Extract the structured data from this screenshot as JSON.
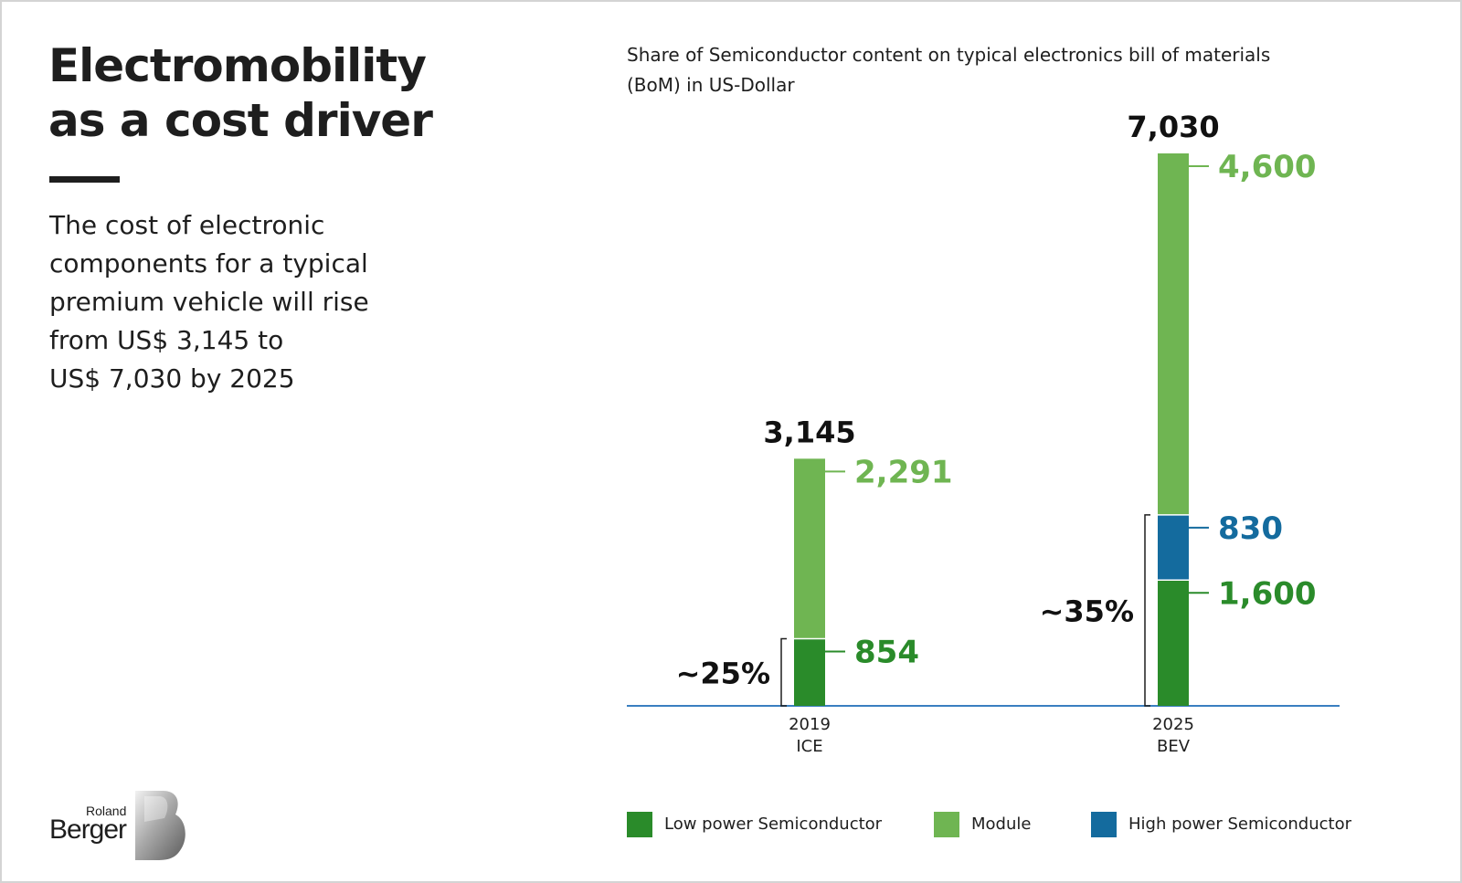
{
  "header": {
    "title_lines": [
      "Electromobility",
      "as a cost driver"
    ],
    "subtitle_lines": [
      "The cost of electronic",
      "components for a typical",
      "premium vehicle will rise",
      "from US$ 3,145 to",
      "US$ 7,030 by 2025"
    ]
  },
  "chart_note_lines": [
    "Share of Semiconductor content on typical electronics bill of materials",
    "(BoM) in US-Dollar"
  ],
  "chart_data": {
    "type": "bar",
    "stacked": true,
    "categories": [
      {
        "year": "2019",
        "label": "ICE"
      },
      {
        "year": "2025",
        "label": "BEV"
      }
    ],
    "series": [
      {
        "name": "Low power Semiconductor",
        "color": "#2a8b2a",
        "values": [
          854,
          1600
        ],
        "labels": [
          "854",
          "1,600"
        ]
      },
      {
        "name": "High power Semiconductor",
        "color": "#146b9e",
        "values": [
          0,
          830
        ],
        "labels": [
          "",
          "830"
        ]
      },
      {
        "name": "Module",
        "color": "#6fb552",
        "values": [
          2291,
          4600
        ],
        "labels": [
          "2,291",
          "4,600"
        ]
      }
    ],
    "totals": [
      3145,
      7030
    ],
    "total_labels": [
      "3,145",
      "7,030"
    ],
    "semiconductor_share_labels": [
      "~25%",
      "~35%"
    ],
    "ylim": [
      0,
      7030
    ],
    "axis_color": "#3a7fc0",
    "grid": false,
    "legend_position": "bottom"
  },
  "brand": {
    "small": "Roland",
    "big": "Berger"
  }
}
